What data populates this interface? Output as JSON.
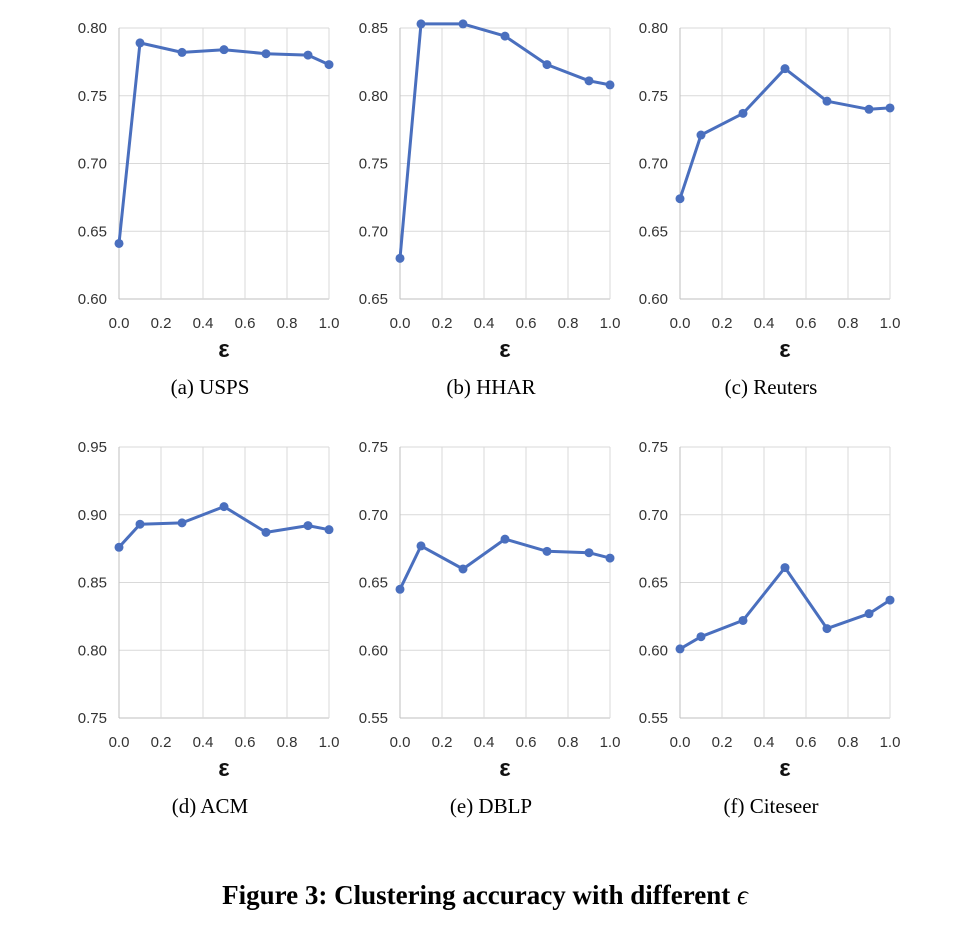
{
  "figure": {
    "caption": "Figure 3: Clustering accuracy with different",
    "caption_symbol": "ϵ"
  },
  "colors": {
    "line": "#4A6FBE",
    "grid": "#D9D9D9",
    "axis": "#BFBFBF"
  },
  "chart_data": [
    {
      "type": "line",
      "caption": "(a)  USPS",
      "xlabel": "ε",
      "x": [
        0.0,
        0.1,
        0.3,
        0.5,
        0.7,
        0.9,
        1.0
      ],
      "xticks": [
        "0.0",
        "0.2",
        "0.4",
        "0.6",
        "0.8",
        "1.0"
      ],
      "yticks": [
        "0.60",
        "0.65",
        "0.70",
        "0.75",
        "0.80"
      ],
      "ylim": [
        0.6,
        0.8
      ],
      "values": [
        0.641,
        0.789,
        0.782,
        0.784,
        0.781,
        0.78,
        0.773
      ],
      "grid": true
    },
    {
      "type": "line",
      "caption": "(b)  HHAR",
      "xlabel": "ε",
      "x": [
        0.0,
        0.1,
        0.3,
        0.5,
        0.7,
        0.9,
        1.0
      ],
      "xticks": [
        "0.0",
        "0.2",
        "0.4",
        "0.6",
        "0.8",
        "1.0"
      ],
      "yticks": [
        "0.65",
        "0.70",
        "0.75",
        "0.80",
        "0.85"
      ],
      "ylim": [
        0.65,
        0.85
      ],
      "values": [
        0.68,
        0.853,
        0.853,
        0.844,
        0.823,
        0.811,
        0.808
      ],
      "grid": true
    },
    {
      "type": "line",
      "caption": "(c)  Reuters",
      "xlabel": "ε",
      "x": [
        0.0,
        0.1,
        0.3,
        0.5,
        0.7,
        0.9,
        1.0
      ],
      "xticks": [
        "0.0",
        "0.2",
        "0.4",
        "0.6",
        "0.8",
        "1.0"
      ],
      "yticks": [
        "0.60",
        "0.65",
        "0.70",
        "0.75",
        "0.80"
      ],
      "ylim": [
        0.6,
        0.8
      ],
      "values": [
        0.674,
        0.721,
        0.737,
        0.77,
        0.746,
        0.74,
        0.741
      ],
      "grid": true
    },
    {
      "type": "line",
      "caption": "(d)  ACM",
      "xlabel": "ε",
      "x": [
        0.0,
        0.1,
        0.3,
        0.5,
        0.7,
        0.9,
        1.0
      ],
      "xticks": [
        "0.0",
        "0.2",
        "0.4",
        "0.6",
        "0.8",
        "1.0"
      ],
      "yticks": [
        "0.75",
        "0.80",
        "0.85",
        "0.90",
        "0.95"
      ],
      "ylim": [
        0.75,
        0.95
      ],
      "values": [
        0.876,
        0.893,
        0.894,
        0.906,
        0.887,
        0.892,
        0.889
      ],
      "grid": true
    },
    {
      "type": "line",
      "caption": "(e)  DBLP",
      "xlabel": "ε",
      "x": [
        0.0,
        0.1,
        0.3,
        0.5,
        0.7,
        0.9,
        1.0
      ],
      "xticks": [
        "0.0",
        "0.2",
        "0.4",
        "0.6",
        "0.8",
        "1.0"
      ],
      "yticks": [
        "0.55",
        "0.60",
        "0.65",
        "0.70",
        "0.75"
      ],
      "ylim": [
        0.55,
        0.75
      ],
      "values": [
        0.645,
        0.677,
        0.66,
        0.682,
        0.673,
        0.672,
        0.668
      ],
      "grid": true
    },
    {
      "type": "line",
      "caption": "(f)  Citeseer",
      "xlabel": "ε",
      "x": [
        0.0,
        0.1,
        0.3,
        0.5,
        0.7,
        0.9,
        1.0
      ],
      "xticks": [
        "0.0",
        "0.2",
        "0.4",
        "0.6",
        "0.8",
        "1.0"
      ],
      "yticks": [
        "0.55",
        "0.60",
        "0.65",
        "0.70",
        "0.75"
      ],
      "ylim": [
        0.55,
        0.75
      ],
      "values": [
        0.601,
        0.61,
        0.622,
        0.661,
        0.616,
        0.627,
        0.637
      ],
      "grid": true
    }
  ]
}
